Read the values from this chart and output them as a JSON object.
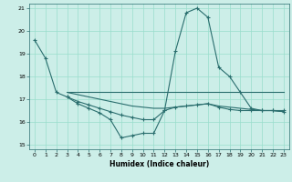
{
  "xlabel": "Humidex (Indice chaleur)",
  "background_color": "#cceee8",
  "grid_color": "#99ddcc",
  "line_color": "#2a6e6e",
  "xlim": [
    -0.5,
    23.5
  ],
  "ylim": [
    14.8,
    21.2
  ],
  "yticks": [
    15,
    16,
    17,
    18,
    19,
    20,
    21
  ],
  "xticks": [
    0,
    1,
    2,
    3,
    4,
    5,
    6,
    7,
    8,
    9,
    10,
    11,
    12,
    13,
    14,
    15,
    16,
    17,
    18,
    19,
    20,
    21,
    22,
    23
  ],
  "series1_x": [
    0,
    1,
    2,
    3,
    4,
    5,
    6,
    7,
    8,
    9,
    10,
    11,
    12,
    13,
    14,
    15,
    16,
    17,
    18,
    19,
    20,
    21,
    22,
    23
  ],
  "series1_y": [
    19.6,
    18.8,
    17.3,
    17.1,
    16.8,
    16.6,
    16.4,
    16.1,
    15.3,
    15.4,
    15.5,
    15.5,
    16.5,
    19.1,
    20.8,
    21.0,
    20.6,
    18.4,
    18.0,
    17.3,
    16.6,
    16.5,
    16.5,
    16.5
  ],
  "series2_x": [
    3,
    23
  ],
  "series2_y": [
    17.3,
    17.3
  ],
  "series3_x": [
    3,
    4,
    5,
    6,
    7,
    8,
    9,
    10,
    11,
    12,
    13,
    14,
    15,
    16,
    17,
    18,
    19,
    20,
    21,
    22,
    23
  ],
  "series3_y": [
    17.1,
    16.9,
    16.75,
    16.6,
    16.45,
    16.3,
    16.2,
    16.1,
    16.1,
    16.5,
    16.65,
    16.7,
    16.75,
    16.8,
    16.65,
    16.55,
    16.5,
    16.5,
    16.5,
    16.5,
    16.45
  ],
  "series4_x": [
    3,
    4,
    5,
    6,
    7,
    8,
    9,
    10,
    11,
    12,
    13,
    14,
    15,
    16,
    17,
    18,
    19,
    20,
    21,
    22,
    23
  ],
  "series4_y": [
    17.3,
    17.2,
    17.1,
    17.0,
    16.9,
    16.8,
    16.7,
    16.65,
    16.6,
    16.6,
    16.65,
    16.7,
    16.75,
    16.8,
    16.7,
    16.65,
    16.6,
    16.55,
    16.5,
    16.5,
    16.45
  ]
}
